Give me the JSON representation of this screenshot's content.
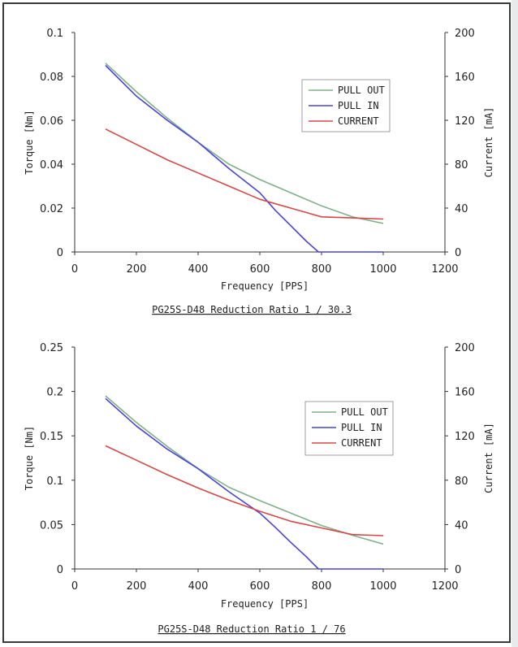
{
  "colors": {
    "pull_out": "#7fb08a",
    "pull_in": "#4a43d8",
    "current": "#d64848",
    "axis": "#333333"
  },
  "chart_data": [
    {
      "type": "line",
      "caption": "PG25S-D48  Reduction Ratio  1 / 30.3",
      "xlabel": "Frequency [PPS]",
      "ylabel": "Torque [Nm]",
      "y2label": "Current [mA]",
      "xlim": [
        0,
        1200
      ],
      "ylim": [
        0,
        0.1
      ],
      "y2lim": [
        0,
        200
      ],
      "xticks": [
        "0",
        "200",
        "400",
        "600",
        "800",
        "1000",
        "1200"
      ],
      "yticks": [
        "0",
        "0.02",
        "0.04",
        "0.06",
        "0.08",
        "0.1"
      ],
      "y2ticks": [
        "0",
        "40",
        "80",
        "120",
        "160",
        "200"
      ],
      "legend_position": "upper-right",
      "series": [
        {
          "name": "PULL OUT",
          "axis": "left",
          "color": "#7fb08a",
          "x": [
            100,
            200,
            300,
            400,
            500,
            600,
            700,
            800,
            900,
            1000
          ],
          "y": [
            0.086,
            0.073,
            0.061,
            0.05,
            0.04,
            0.033,
            0.027,
            0.021,
            0.016,
            0.013
          ]
        },
        {
          "name": "PULL IN",
          "axis": "left",
          "color": "#4a43d8",
          "x": [
            100,
            200,
            300,
            400,
            500,
            600,
            650,
            700,
            750,
            790,
            800,
            1000
          ],
          "y": [
            0.085,
            0.071,
            0.06,
            0.05,
            0.038,
            0.027,
            0.019,
            0.012,
            0.005,
            0.0,
            0.0,
            0.0
          ]
        },
        {
          "name": "CURRENT",
          "axis": "right",
          "color": "#d64848",
          "x": [
            100,
            200,
            300,
            400,
            500,
            600,
            700,
            800,
            900,
            1000
          ],
          "y": [
            112,
            98,
            84,
            72,
            60,
            48,
            40,
            32,
            31,
            30
          ]
        }
      ]
    },
    {
      "type": "line",
      "caption": "PG25S-D48  Reduction Ratio  1 / 76",
      "xlabel": "Frequency [PPS]",
      "ylabel": "Torque [Nm]",
      "y2label": "Current [mA]",
      "xlim": [
        0,
        1200
      ],
      "ylim": [
        0,
        0.25
      ],
      "y2lim": [
        0,
        200
      ],
      "xticks": [
        "0",
        "200",
        "400",
        "600",
        "800",
        "1000",
        "1200"
      ],
      "yticks": [
        "0",
        "0.05",
        "0.1",
        "0.15",
        "0.2",
        "0.25"
      ],
      "y2ticks": [
        "0",
        "40",
        "80",
        "120",
        "160",
        "200"
      ],
      "legend_position": "upper-right",
      "series": [
        {
          "name": "PULL OUT",
          "axis": "left",
          "color": "#7fb08a",
          "x": [
            100,
            200,
            300,
            400,
            500,
            600,
            700,
            800,
            900,
            1000
          ],
          "y": [
            0.195,
            0.165,
            0.138,
            0.113,
            0.092,
            0.077,
            0.063,
            0.049,
            0.038,
            0.028
          ]
        },
        {
          "name": "PULL IN",
          "axis": "left",
          "color": "#4a43d8",
          "x": [
            100,
            200,
            300,
            400,
            500,
            600,
            650,
            700,
            750,
            790,
            800,
            1000
          ],
          "y": [
            0.192,
            0.161,
            0.135,
            0.113,
            0.087,
            0.063,
            0.047,
            0.03,
            0.014,
            0.0,
            0.0,
            0.0
          ]
        },
        {
          "name": "CURRENT",
          "axis": "right",
          "color": "#d64848",
          "x": [
            100,
            200,
            300,
            400,
            500,
            600,
            700,
            800,
            900,
            1000
          ],
          "y": [
            111,
            98,
            85,
            73,
            62,
            52,
            43,
            37,
            31,
            30
          ]
        }
      ]
    }
  ]
}
